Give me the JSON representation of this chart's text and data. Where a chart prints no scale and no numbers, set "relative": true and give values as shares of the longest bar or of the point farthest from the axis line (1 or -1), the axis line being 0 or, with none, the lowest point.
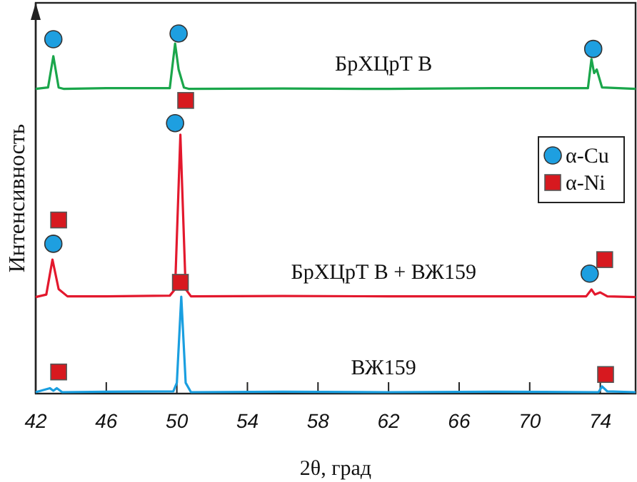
{
  "chart_data": {
    "type": "line",
    "relative": true,
    "xlabel": "2θ, град",
    "ylabel": "Интенсивность",
    "xlim": [
      42,
      76
    ],
    "xticks": [
      42,
      46,
      50,
      54,
      58,
      62,
      66,
      70,
      74
    ],
    "grid": false,
    "legend": "top right",
    "series": [
      {
        "name": "БрХЦрТ В",
        "color": "#1aa64b",
        "x": [
          42,
          42.7,
          43.0,
          43.3,
          43.6,
          46,
          49.6,
          49.9,
          50.1,
          50.4,
          50.7,
          56,
          62,
          68,
          73.3,
          73.5,
          73.65,
          73.8,
          74.1,
          76
        ],
        "values": [
          0.846,
          0.85,
          0.937,
          0.85,
          0.846,
          0.848,
          0.848,
          0.972,
          0.9,
          0.85,
          0.846,
          0.847,
          0.846,
          0.848,
          0.848,
          0.929,
          0.89,
          0.9,
          0.85,
          0.846
        ]
      },
      {
        "name": "БрХЦрТ В + ВЖ159",
        "color": "#e3182d",
        "x": [
          42,
          42.6,
          42.95,
          43.3,
          43.8,
          46,
          49.6,
          49.9,
          50.2,
          50.5,
          50.8,
          56,
          62,
          68,
          73.2,
          73.5,
          73.7,
          74.0,
          74.4,
          76
        ],
        "values": [
          0.268,
          0.275,
          0.372,
          0.29,
          0.27,
          0.27,
          0.272,
          0.29,
          0.719,
          0.29,
          0.27,
          0.271,
          0.27,
          0.27,
          0.27,
          0.289,
          0.275,
          0.281,
          0.27,
          0.268
        ]
      },
      {
        "name": "ВЖ159",
        "color": "#1a9fe0",
        "x": [
          42,
          42.8,
          43.0,
          43.2,
          43.5,
          46,
          49.8,
          50.0,
          50.25,
          50.5,
          50.8,
          56,
          62,
          68,
          73.9,
          74.1,
          74.4,
          76
        ],
        "values": [
          0.004,
          0.015,
          0.008,
          0.015,
          0.004,
          0.005,
          0.006,
          0.03,
          0.269,
          0.03,
          0.004,
          0.005,
          0.004,
          0.005,
          0.004,
          0.02,
          0.006,
          0.004
        ]
      },
      {
        "name": "α-Cu",
        "type": "scatter",
        "marker": "circle",
        "color": "#1e9fe0",
        "x": [
          43.0,
          50.1,
          73.6,
          43.0,
          49.9,
          73.4
        ],
        "values": [
          0.984,
          1.0,
          0.957,
          0.416,
          0.751,
          0.333
        ]
      },
      {
        "name": "α-Ni",
        "type": "scatter",
        "marker": "square",
        "color": "#d7191f",
        "x": [
          50.5,
          43.3,
          50.2,
          74.25,
          43.3,
          74.3
        ],
        "values": [
          0.814,
          0.482,
          0.309,
          0.372,
          0.06,
          0.053
        ]
      }
    ]
  }
}
